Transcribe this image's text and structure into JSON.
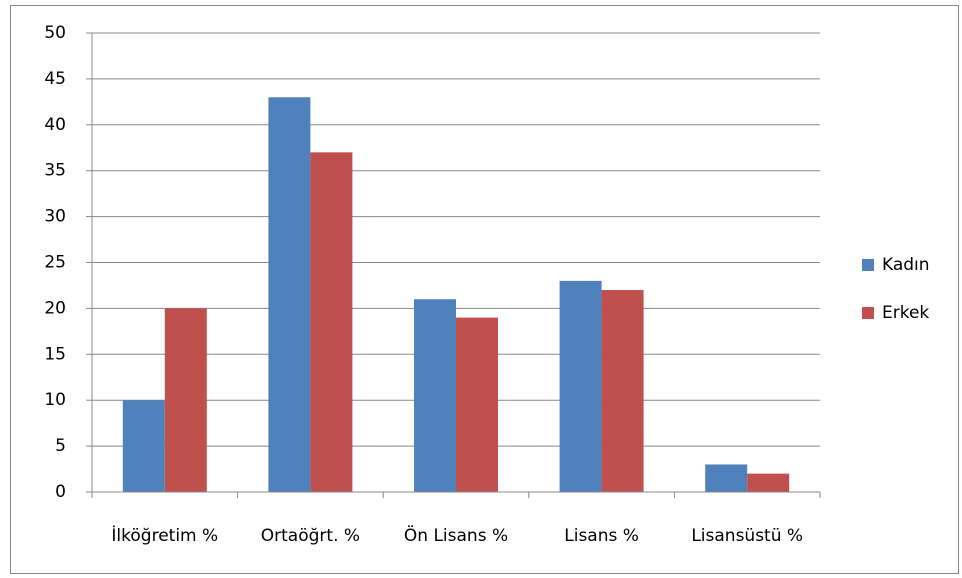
{
  "chart_data": {
    "type": "bar",
    "categories": [
      "İlköğretim %",
      "Ortaöğrt. %",
      "Ön Lisans %",
      "Lisans %",
      "Lisansüstü %"
    ],
    "series": [
      {
        "name": "Kadın",
        "color": "#4f81bd",
        "values": [
          10,
          43,
          21,
          23,
          3
        ]
      },
      {
        "name": "Erkek",
        "color": "#c0504d",
        "values": [
          20,
          37,
          19,
          22,
          2
        ]
      }
    ],
    "ylim": [
      0,
      50
    ],
    "yticks": [
      0,
      5,
      10,
      15,
      20,
      25,
      30,
      35,
      40,
      45,
      50
    ],
    "grid": true,
    "legend": "right"
  }
}
